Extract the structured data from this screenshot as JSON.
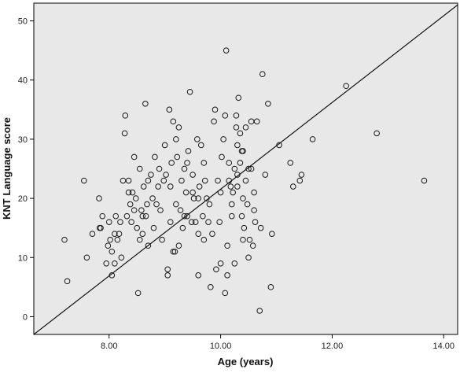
{
  "chart_data": {
    "type": "scatter",
    "xlabel": "Age (years)",
    "ylabel": "KNT Language score",
    "xlim": [
      6.65,
      14.25
    ],
    "ylim": [
      -3,
      53
    ],
    "x_ticks": [
      8,
      10,
      12,
      14
    ],
    "x_tick_labels": [
      "8.00",
      "10.00",
      "12.00",
      "14.00"
    ],
    "y_ticks": [
      0,
      10,
      20,
      30,
      40,
      50
    ],
    "y_tick_labels": [
      "0",
      "10",
      "20",
      "30",
      "40",
      "50"
    ],
    "grid": false,
    "legend": "none",
    "reference_line": {
      "x": [
        6.65,
        14.25
      ],
      "y": [
        -3,
        52.7
      ]
    },
    "colors": {
      "plot_background": "#e8e8e8",
      "marker_stroke": "#1a1a1a",
      "line": "#111111"
    },
    "points": [
      [
        7.2,
        13
      ],
      [
        7.25,
        6
      ],
      [
        7.55,
        23
      ],
      [
        7.6,
        10
      ],
      [
        7.82,
        20
      ],
      [
        7.88,
        17
      ],
      [
        7.83,
        15
      ],
      [
        7.85,
        15
      ],
      [
        7.7,
        14
      ],
      [
        7.95,
        9
      ],
      [
        7.98,
        12
      ],
      [
        8.0,
        16
      ],
      [
        8.02,
        13
      ],
      [
        8.05,
        11
      ],
      [
        8.1,
        14
      ],
      [
        8.12,
        17
      ],
      [
        8.15,
        13
      ],
      [
        8.18,
        14
      ],
      [
        8.2,
        16
      ],
      [
        8.25,
        23
      ],
      [
        8.28,
        31
      ],
      [
        8.29,
        34
      ],
      [
        8.32,
        17
      ],
      [
        8.35,
        23
      ],
      [
        8.38,
        19
      ],
      [
        8.42,
        21
      ],
      [
        8.45,
        27
      ],
      [
        8.48,
        20
      ],
      [
        8.5,
        15
      ],
      [
        8.55,
        13
      ],
      [
        8.58,
        18
      ],
      [
        8.6,
        14
      ],
      [
        8.62,
        22
      ],
      [
        8.65,
        36
      ],
      [
        8.66,
        17
      ],
      [
        8.68,
        19
      ],
      [
        8.7,
        12
      ],
      [
        8.75,
        24
      ],
      [
        8.78,
        20
      ],
      [
        8.8,
        15
      ],
      [
        8.82,
        27
      ],
      [
        8.85,
        19
      ],
      [
        8.88,
        22
      ],
      [
        8.92,
        18
      ],
      [
        8.95,
        13
      ],
      [
        8.98,
        23
      ],
      [
        9.02,
        24
      ],
      [
        9.05,
        8
      ],
      [
        9.08,
        35
      ],
      [
        9.1,
        22
      ],
      [
        9.12,
        26
      ],
      [
        9.15,
        33
      ],
      [
        9.18,
        11
      ],
      [
        9.2,
        19
      ],
      [
        9.22,
        27
      ],
      [
        9.25,
        32
      ],
      [
        9.28,
        18
      ],
      [
        9.3,
        23
      ],
      [
        9.32,
        15
      ],
      [
        9.35,
        17
      ],
      [
        9.38,
        21
      ],
      [
        9.4,
        26
      ],
      [
        9.42,
        28
      ],
      [
        9.45,
        38
      ],
      [
        9.48,
        16
      ],
      [
        9.5,
        24
      ],
      [
        9.52,
        20
      ],
      [
        9.55,
        16
      ],
      [
        9.58,
        30
      ],
      [
        9.6,
        14
      ],
      [
        9.62,
        22
      ],
      [
        9.65,
        29
      ],
      [
        9.68,
        17
      ],
      [
        9.7,
        26
      ],
      [
        9.72,
        23
      ],
      [
        9.75,
        20
      ],
      [
        9.78,
        16
      ],
      [
        9.8,
        19
      ],
      [
        9.82,
        5
      ],
      [
        9.85,
        14
      ],
      [
        9.88,
        33
      ],
      [
        9.9,
        35
      ],
      [
        9.92,
        8
      ],
      [
        9.95,
        23
      ],
      [
        9.98,
        16
      ],
      [
        10.0,
        21
      ],
      [
        10.02,
        27
      ],
      [
        10.05,
        30
      ],
      [
        10.08,
        34
      ],
      [
        10.1,
        45
      ],
      [
        10.12,
        12
      ],
      [
        10.15,
        26
      ],
      [
        10.18,
        22
      ],
      [
        10.2,
        19
      ],
      [
        10.22,
        21
      ],
      [
        10.25,
        25
      ],
      [
        10.28,
        32
      ],
      [
        10.3,
        24
      ],
      [
        10.32,
        37
      ],
      [
        10.35,
        31
      ],
      [
        10.38,
        17
      ],
      [
        10.4,
        28
      ],
      [
        10.42,
        15
      ],
      [
        10.45,
        23
      ],
      [
        10.48,
        19
      ],
      [
        10.5,
        25
      ],
      [
        10.52,
        13
      ],
      [
        10.55,
        33
      ],
      [
        10.58,
        12
      ],
      [
        10.6,
        18
      ],
      [
        10.62,
        16
      ],
      [
        10.65,
        33
      ],
      [
        10.7,
        1
      ],
      [
        10.72,
        15
      ],
      [
        10.75,
        41
      ],
      [
        10.8,
        24
      ],
      [
        10.85,
        36
      ],
      [
        10.9,
        5
      ],
      [
        10.92,
        14
      ],
      [
        11.05,
        29
      ],
      [
        11.25,
        26
      ],
      [
        11.3,
        22
      ],
      [
        11.42,
        23
      ],
      [
        11.45,
        24
      ],
      [
        11.65,
        30
      ],
      [
        12.25,
        39
      ],
      [
        12.8,
        31
      ],
      [
        13.65,
        23
      ],
      [
        8.1,
        9
      ],
      [
        8.05,
        7
      ],
      [
        8.22,
        10
      ],
      [
        8.4,
        16
      ],
      [
        8.52,
        4
      ],
      [
        9.05,
        7
      ],
      [
        9.15,
        11
      ],
      [
        9.6,
        7
      ],
      [
        10.08,
        4
      ],
      [
        10.12,
        7
      ],
      [
        10.0,
        9
      ],
      [
        9.7,
        13
      ],
      [
        9.0,
        29
      ],
      [
        9.2,
        30
      ],
      [
        9.35,
        25
      ],
      [
        9.5,
        21
      ],
      [
        9.25,
        12
      ],
      [
        9.4,
        17
      ],
      [
        9.6,
        20
      ],
      [
        8.7,
        23
      ],
      [
        8.55,
        25
      ],
      [
        8.35,
        21
      ],
      [
        8.45,
        18
      ],
      [
        8.6,
        17
      ],
      [
        8.9,
        25
      ],
      [
        9.1,
        16
      ],
      [
        10.3,
        22
      ],
      [
        10.2,
        17
      ],
      [
        10.4,
        13
      ],
      [
        10.55,
        25
      ],
      [
        10.25,
        9
      ],
      [
        10.4,
        20
      ],
      [
        10.35,
        26
      ],
      [
        10.45,
        32
      ],
      [
        10.3,
        29
      ],
      [
        10.15,
        23
      ],
      [
        10.6,
        21
      ],
      [
        10.5,
        10
      ],
      [
        10.38,
        28
      ],
      [
        10.28,
        34
      ]
    ]
  }
}
